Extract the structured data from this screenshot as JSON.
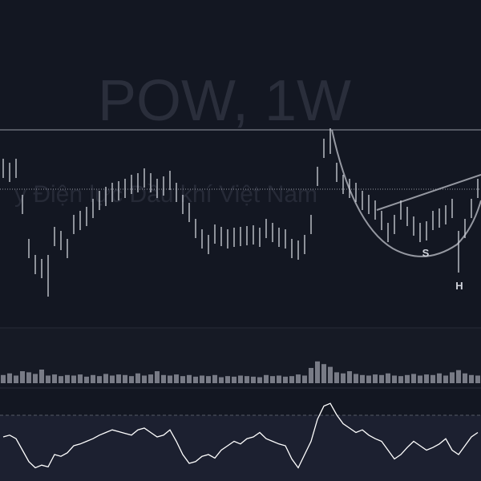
{
  "chart_data": [
    {
      "type": "ohlc",
      "title": "POW, 1W",
      "subtitle": "y Điện lực Dầu khí Việt Nam",
      "annotations": [
        "S",
        "H"
      ],
      "color": "#d1d4dc",
      "ylim": [
        0,
        400
      ],
      "high": [
        202,
        197,
        202,
        157,
        102,
        82,
        77,
        82,
        117,
        112,
        102,
        132,
        137,
        142,
        152,
        162,
        167,
        172,
        174,
        177,
        182,
        184,
        190,
        184,
        177,
        180,
        187,
        172,
        157,
        147,
        127,
        114,
        107,
        120,
        117,
        114,
        116,
        117,
        118,
        119,
        116,
        127,
        122,
        116,
        114,
        102,
        100,
        107,
        132,
        192,
        227,
        240,
        197,
        182,
        177,
        172,
        162,
        157,
        150,
        137,
        122,
        132,
        150,
        142,
        130,
        122,
        124,
        137,
        140,
        144,
        152,
        112,
        127,
        152,
        177
      ],
      "low": [
        178,
        173,
        178,
        133,
        78,
        58,
        53,
        30,
        93,
        88,
        78,
        108,
        113,
        118,
        128,
        138,
        143,
        148,
        150,
        153,
        158,
        160,
        166,
        160,
        153,
        156,
        163,
        148,
        133,
        123,
        103,
        90,
        83,
        96,
        93,
        90,
        92,
        93,
        94,
        95,
        92,
        103,
        98,
        92,
        90,
        78,
        76,
        83,
        108,
        168,
        203,
        208,
        173,
        158,
        153,
        148,
        138,
        133,
        126,
        113,
        98,
        108,
        126,
        118,
        106,
        98,
        100,
        113,
        116,
        120,
        128,
        60,
        103,
        128,
        153
      ]
    },
    {
      "type": "bar",
      "color": "#787b86",
      "ylim": [
        0,
        100
      ],
      "values": [
        15,
        18,
        14,
        22,
        20,
        17,
        25,
        14,
        16,
        13,
        15,
        14,
        16,
        12,
        15,
        13,
        17,
        14,
        16,
        15,
        13,
        18,
        14,
        16,
        22,
        15,
        14,
        16,
        13,
        15,
        12,
        14,
        13,
        15,
        11,
        13,
        12,
        14,
        13,
        12,
        11,
        15,
        13,
        14,
        12,
        13,
        16,
        14,
        28,
        40,
        35,
        30,
        20,
        18,
        22,
        17,
        15,
        14,
        16,
        15,
        18,
        14,
        13,
        15,
        17,
        14,
        16,
        15,
        18,
        14,
        20,
        24,
        18,
        15,
        14
      ]
    },
    {
      "type": "line",
      "color": "#ffffff",
      "ylim": [
        0,
        100
      ],
      "values": [
        50,
        52,
        48,
        35,
        22,
        15,
        18,
        16,
        30,
        28,
        32,
        40,
        42,
        45,
        48,
        52,
        55,
        58,
        56,
        54,
        52,
        58,
        60,
        55,
        50,
        52,
        58,
        45,
        30,
        20,
        22,
        28,
        30,
        26,
        35,
        40,
        45,
        42,
        48,
        50,
        55,
        48,
        45,
        42,
        40,
        25,
        15,
        30,
        45,
        70,
        85,
        88,
        75,
        65,
        60,
        55,
        58,
        52,
        48,
        45,
        35,
        25,
        30,
        38,
        45,
        40,
        35,
        38,
        42,
        48,
        35,
        30,
        40,
        50,
        55
      ]
    }
  ]
}
